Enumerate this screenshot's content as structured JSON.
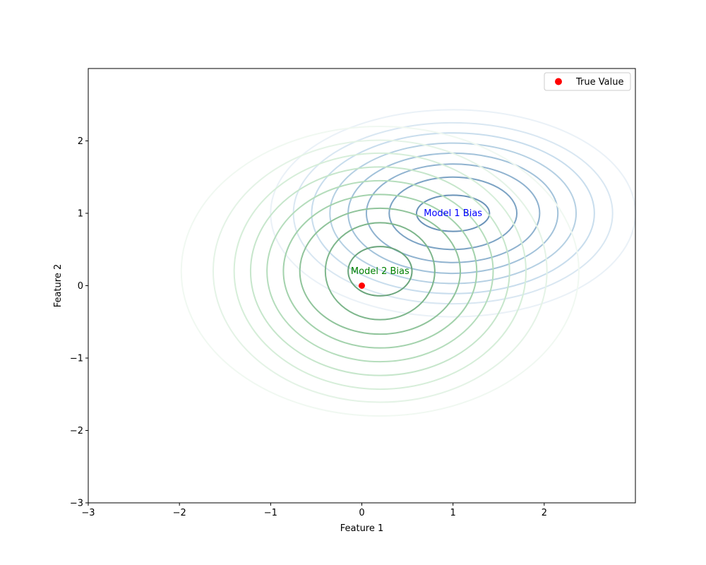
{
  "chart_data": {
    "type": "contour",
    "xlabel": "Feature 1",
    "ylabel": "Feature 2",
    "xlim": [
      -3,
      3
    ],
    "ylim": [
      -3,
      3
    ],
    "x_ticks": [
      -3,
      -2,
      -1,
      0,
      1,
      2
    ],
    "y_ticks": [
      -3,
      -2,
      -1,
      0,
      1,
      2
    ],
    "grid": false,
    "legend": {
      "position": "top-right",
      "entries": [
        {
          "label": "True Value",
          "color": "#ff0000",
          "marker": "circle"
        }
      ]
    },
    "true_value": {
      "x": 0,
      "y": 0,
      "color": "#ff0000"
    },
    "distributions": [
      {
        "label": "Model 1 Bias",
        "label_color": "#0000ff",
        "center": [
          1.0,
          1.0
        ],
        "colormap": "blues",
        "contour_radii_x": [
          0.4,
          0.7,
          0.95,
          1.15,
          1.35,
          1.55,
          1.75,
          2.0
        ],
        "contour_radii_y": [
          0.25,
          0.5,
          0.68,
          0.83,
          0.97,
          1.11,
          1.25,
          1.43
        ],
        "contour_colors": [
          "#6a93b8",
          "#7ca3c4",
          "#8fb2cf",
          "#a2c2da",
          "#b5d0e3",
          "#c8dded",
          "#d9e7f2",
          "#eaf1f7"
        ]
      },
      {
        "label": "Model 2 Bias",
        "label_color": "#008000",
        "center": [
          0.2,
          0.2
        ],
        "colormap": "greens",
        "contour_radii_x": [
          0.35,
          0.6,
          0.88,
          1.06,
          1.24,
          1.42,
          1.6,
          1.83,
          2.18
        ],
        "contour_radii_y": [
          0.34,
          0.67,
          0.87,
          1.06,
          1.25,
          1.44,
          1.63,
          1.81,
          2.0
        ],
        "contour_colors": [
          "#6aa57c",
          "#7db68b",
          "#90c49b",
          "#a3d2ac",
          "#b5ddbc",
          "#c6e6cb",
          "#d6eed9",
          "#e4f3e6",
          "#f0f8f1"
        ]
      }
    ]
  }
}
